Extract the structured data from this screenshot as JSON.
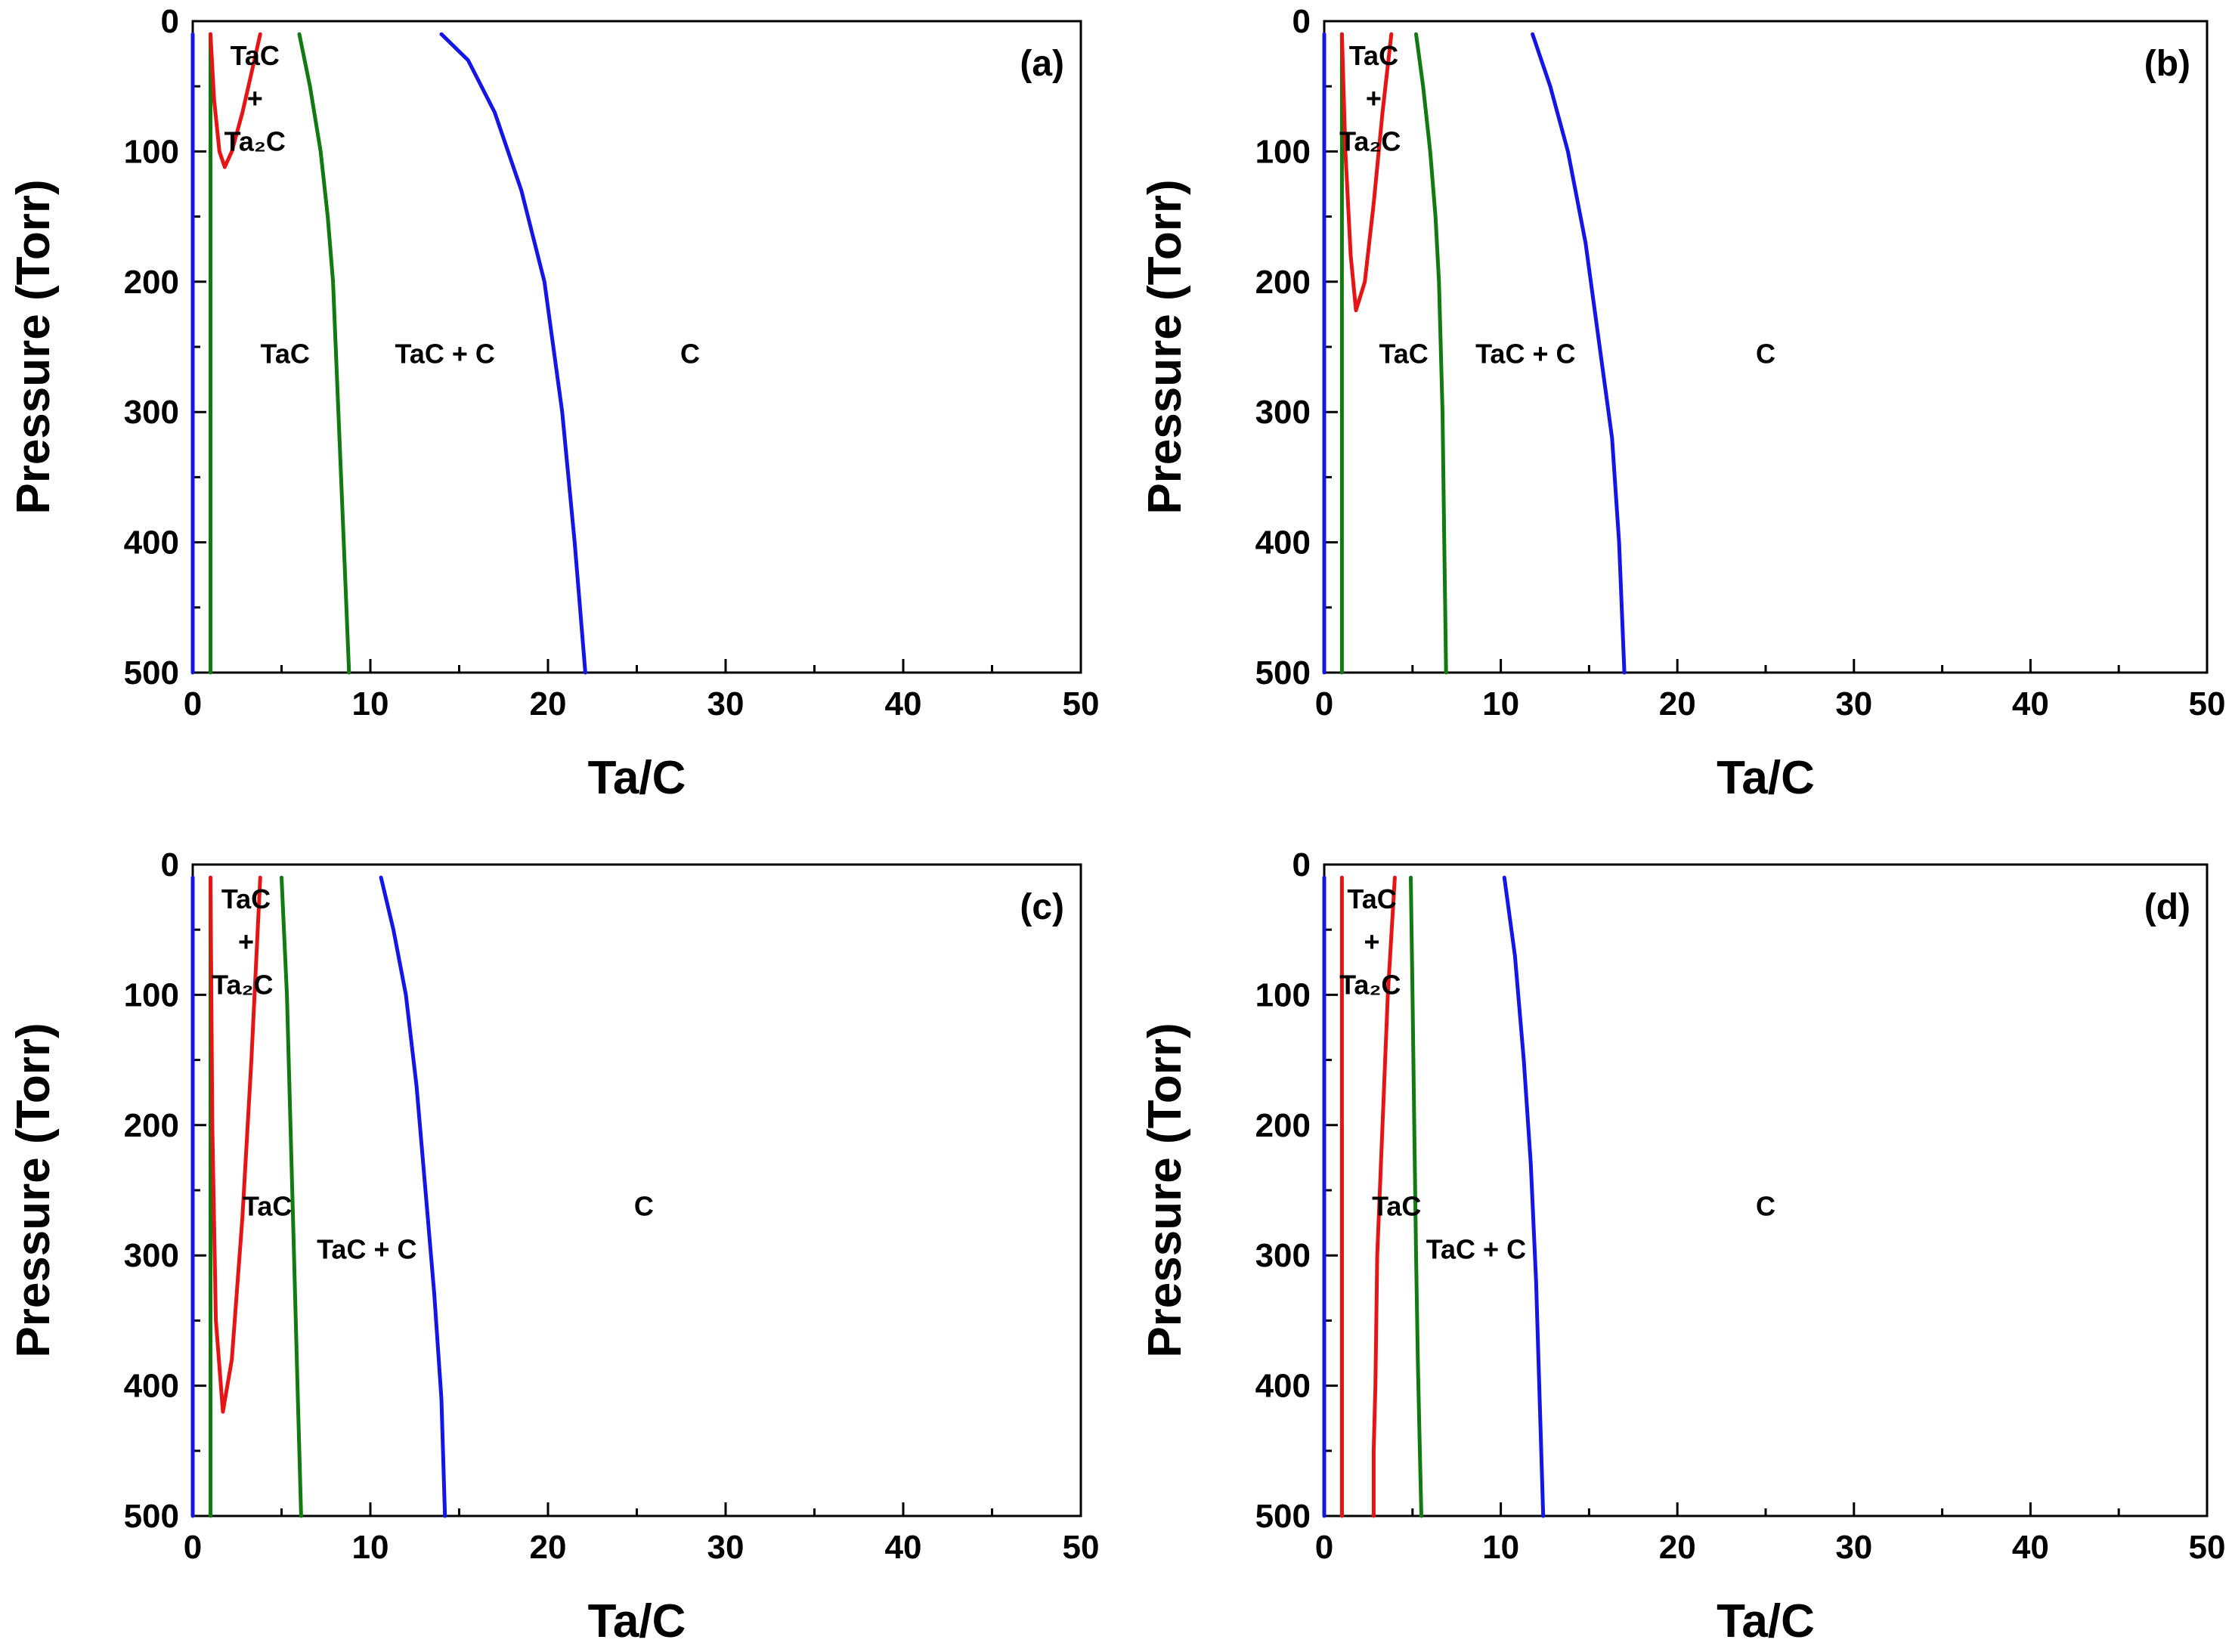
{
  "colors": {
    "blue": "#1515e6",
    "green": "#117a11",
    "red": "#e61515",
    "axis": "#000000"
  },
  "chart_data": [
    {
      "type": "line",
      "panel_label": "(a)",
      "xlabel": "Ta/C",
      "ylabel": "Pressure (Torr)",
      "xlim": [
        0,
        50
      ],
      "ylim": [
        500,
        0
      ],
      "y_inverted": true,
      "xticks": [
        "0",
        "10",
        "20",
        "30",
        "40",
        "50"
      ],
      "yticks": [
        "0",
        "100",
        "200",
        "300",
        "400",
        "500"
      ],
      "region_labels": [
        {
          "text": "TaC",
          "x": 3.5,
          "y": 26
        },
        {
          "text": "+",
          "x": 3.5,
          "y": 59
        },
        {
          "text": "Ta₂C",
          "x": 3.5,
          "y": 92
        },
        {
          "text": "TaC",
          "x": 5.2,
          "y": 255
        },
        {
          "text": "TaC + C",
          "x": 14.2,
          "y": 255
        },
        {
          "text": "C",
          "x": 28,
          "y": 255
        }
      ],
      "series": [
        {
          "color": "blue",
          "x": [
            0.0,
            0.0
          ],
          "y": [
            10,
            500
          ]
        },
        {
          "color": "green",
          "x": [
            1.0,
            1.0
          ],
          "y": [
            10,
            500
          ]
        },
        {
          "color": "red",
          "x": [
            1.0,
            1.2,
            1.5,
            1.8,
            2.2,
            2.8,
            3.3,
            3.8
          ],
          "y": [
            10,
            60,
            100,
            112,
            100,
            70,
            40,
            10
          ]
        },
        {
          "color": "green",
          "x": [
            6.0,
            6.6,
            7.2,
            7.6,
            7.9,
            8.2,
            8.5,
            8.8
          ],
          "y": [
            10,
            50,
            100,
            150,
            200,
            300,
            400,
            500
          ]
        },
        {
          "color": "blue",
          "x": [
            14.0,
            15.5,
            17.0,
            18.5,
            19.8,
            20.8,
            21.5,
            22.1
          ],
          "y": [
            10,
            30,
            70,
            130,
            200,
            300,
            400,
            500
          ]
        }
      ]
    },
    {
      "type": "line",
      "panel_label": "(b)",
      "xlabel": "Ta/C",
      "ylabel": "Pressure (Torr)",
      "xlim": [
        0,
        50
      ],
      "ylim": [
        500,
        0
      ],
      "y_inverted": true,
      "xticks": [
        "0",
        "10",
        "20",
        "30",
        "40",
        "50"
      ],
      "yticks": [
        "0",
        "100",
        "200",
        "300",
        "400",
        "500"
      ],
      "region_labels": [
        {
          "text": "TaC",
          "x": 2.8,
          "y": 26
        },
        {
          "text": "+",
          "x": 2.8,
          "y": 59
        },
        {
          "text": "Ta₂C",
          "x": 2.6,
          "y": 92
        },
        {
          "text": "TaC",
          "x": 4.5,
          "y": 255
        },
        {
          "text": "TaC + C",
          "x": 11.4,
          "y": 255
        },
        {
          "text": "C",
          "x": 25,
          "y": 255
        }
      ],
      "series": [
        {
          "color": "blue",
          "x": [
            0.0,
            0.0
          ],
          "y": [
            10,
            500
          ]
        },
        {
          "color": "green",
          "x": [
            1.0,
            1.0
          ],
          "y": [
            10,
            500
          ]
        },
        {
          "color": "red",
          "x": [
            1.0,
            1.2,
            1.5,
            1.8,
            2.3,
            2.8,
            3.3,
            3.8
          ],
          "y": [
            10,
            100,
            180,
            222,
            200,
            140,
            70,
            10
          ]
        },
        {
          "color": "green",
          "x": [
            5.2,
            5.6,
            6.0,
            6.3,
            6.5,
            6.7,
            6.8,
            6.9
          ],
          "y": [
            10,
            50,
            100,
            150,
            200,
            300,
            400,
            500
          ]
        },
        {
          "color": "blue",
          "x": [
            11.8,
            12.8,
            13.8,
            14.8,
            15.6,
            16.3,
            16.7,
            17.0
          ],
          "y": [
            10,
            50,
            100,
            170,
            250,
            320,
            400,
            500
          ]
        }
      ]
    },
    {
      "type": "line",
      "panel_label": "(c)",
      "xlabel": "Ta/C",
      "ylabel": "Pressure (Torr)",
      "xlim": [
        0,
        50
      ],
      "ylim": [
        500,
        0
      ],
      "y_inverted": true,
      "xticks": [
        "0",
        "10",
        "20",
        "30",
        "40",
        "50"
      ],
      "yticks": [
        "0",
        "100",
        "200",
        "300",
        "400",
        "500"
      ],
      "region_labels": [
        {
          "text": "TaC",
          "x": 3.0,
          "y": 26
        },
        {
          "text": "+",
          "x": 3.0,
          "y": 59
        },
        {
          "text": "Ta₂C",
          "x": 2.8,
          "y": 92
        },
        {
          "text": "TaC",
          "x": 4.2,
          "y": 262
        },
        {
          "text": "TaC + C",
          "x": 9.8,
          "y": 295
        },
        {
          "text": "C",
          "x": 25.4,
          "y": 262
        }
      ],
      "series": [
        {
          "color": "blue",
          "x": [
            0.0,
            0.0
          ],
          "y": [
            10,
            500
          ]
        },
        {
          "color": "green",
          "x": [
            1.0,
            1.0
          ],
          "y": [
            10,
            500
          ]
        },
        {
          "color": "red",
          "x": [
            1.0,
            1.1,
            1.3,
            1.7,
            2.2,
            2.8,
            3.3,
            3.8
          ],
          "y": [
            10,
            200,
            350,
            420,
            380,
            270,
            150,
            10
          ]
        },
        {
          "color": "green",
          "x": [
            5.0,
            5.3,
            5.5,
            5.7,
            5.8,
            5.9,
            6.0,
            6.1
          ],
          "y": [
            10,
            100,
            200,
            300,
            350,
            400,
            450,
            500
          ]
        },
        {
          "color": "blue",
          "x": [
            10.6,
            11.3,
            12.0,
            12.6,
            13.1,
            13.6,
            14.0,
            14.2
          ],
          "y": [
            10,
            50,
            100,
            170,
            250,
            330,
            410,
            500
          ]
        }
      ]
    },
    {
      "type": "line",
      "panel_label": "(d)",
      "xlabel": "Ta/C",
      "ylabel": "Pressure (Torr)",
      "xlim": [
        0,
        50
      ],
      "ylim": [
        500,
        0
      ],
      "y_inverted": true,
      "xticks": [
        "0",
        "10",
        "20",
        "30",
        "40",
        "50"
      ],
      "yticks": [
        "0",
        "100",
        "200",
        "300",
        "400",
        "500"
      ],
      "region_labels": [
        {
          "text": "TaC",
          "x": 2.7,
          "y": 26
        },
        {
          "text": "+",
          "x": 2.7,
          "y": 59
        },
        {
          "text": "Ta₂C",
          "x": 2.6,
          "y": 92
        },
        {
          "text": "TaC",
          "x": 4.1,
          "y": 262
        },
        {
          "text": "TaC + C",
          "x": 8.6,
          "y": 295
        },
        {
          "text": "C",
          "x": 25,
          "y": 262
        }
      ],
      "series": [
        {
          "color": "blue",
          "x": [
            0.0,
            0.0
          ],
          "y": [
            10,
            500
          ]
        },
        {
          "color": "green",
          "x": [
            1.0,
            1.0
          ],
          "y": [
            200,
            500
          ]
        },
        {
          "color": "red",
          "x": [
            1.0,
            1.0
          ],
          "y": [
            10,
            500
          ]
        },
        {
          "color": "red",
          "x": [
            4.0,
            3.6,
            3.3,
            3.0,
            2.9,
            2.8,
            2.8
          ],
          "y": [
            10,
            100,
            200,
            300,
            400,
            450,
            500
          ]
        },
        {
          "color": "green",
          "x": [
            4.9,
            5.0,
            5.1,
            5.2,
            5.3,
            5.4,
            5.5
          ],
          "y": [
            10,
            100,
            200,
            300,
            380,
            440,
            500
          ]
        },
        {
          "color": "blue",
          "x": [
            10.2,
            10.8,
            11.3,
            11.7,
            12.0,
            12.2,
            12.4
          ],
          "y": [
            10,
            70,
            150,
            230,
            320,
            410,
            500
          ]
        }
      ]
    }
  ]
}
